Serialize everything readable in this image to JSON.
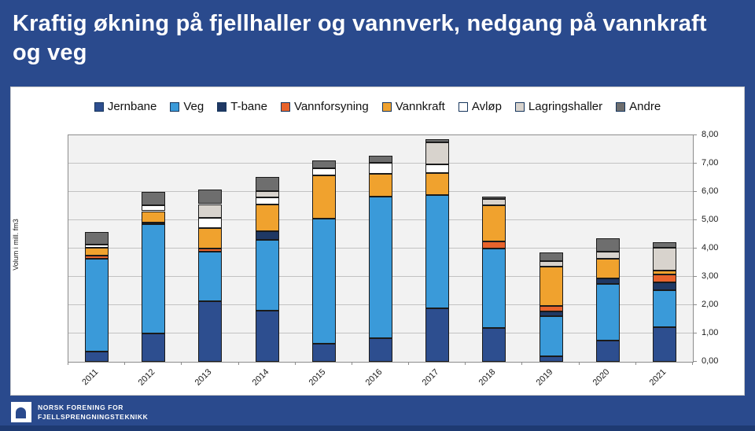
{
  "slide": {
    "title": "Kraftig økning på fjellhaller og vannverk, nedgang på vannkraft og veg",
    "background_color": "#2A4A8D",
    "title_color": "#FFFFFF"
  },
  "footer": {
    "org_line1": "NORSK FORENING FOR",
    "org_line2": "FJELLSPRENGNINGSTEKNIKK"
  },
  "chart_data": {
    "type": "bar",
    "stacked": true,
    "title": "",
    "xlabel": "",
    "ylabel": "Volum i mill. fm3",
    "ylim": [
      0,
      8
    ],
    "y_tick_labels": [
      "0,00",
      "1,00",
      "2,00",
      "3,00",
      "4,00",
      "5,00",
      "6,00",
      "7,00",
      "8,00"
    ],
    "y_axis_side": "right",
    "grid": true,
    "legend_position": "top",
    "plot_background": "#F2F2F2",
    "categories": [
      "2011",
      "2012",
      "2013",
      "2014",
      "2015",
      "2016",
      "2017",
      "2018",
      "2019",
      "2020",
      "2021"
    ],
    "series": [
      {
        "name": "Jernbane",
        "color": "#2D4E8F",
        "values": [
          0.35,
          1.0,
          2.15,
          1.8,
          0.63,
          0.83,
          1.88,
          1.19,
          0.19,
          0.76,
          1.22
        ]
      },
      {
        "name": "Veg",
        "color": "#3A9AD9",
        "values": [
          3.3,
          3.85,
          1.75,
          2.5,
          4.42,
          5.0,
          4.0,
          2.8,
          1.43,
          2.0,
          1.31
        ]
      },
      {
        "name": "T-bane",
        "color": "#1F3864",
        "values": [
          0,
          0,
          0,
          0.3,
          0,
          0,
          0,
          0,
          0.16,
          0.19,
          0.27
        ]
      },
      {
        "name": "Vannforsyning",
        "color": "#E8632C",
        "values": [
          0.1,
          0.07,
          0.1,
          0,
          0,
          0,
          0,
          0.26,
          0.19,
          0,
          0.28
        ]
      },
      {
        "name": "Vannkraft",
        "color": "#F0A22E",
        "values": [
          0.28,
          0.4,
          0.73,
          0.95,
          1.53,
          0.82,
          0.8,
          1.28,
          1.4,
          0.69,
          0.15
        ]
      },
      {
        "name": "Avløp",
        "color": "#FFFFFF",
        "values": [
          0.1,
          0.22,
          0.35,
          0.25,
          0.25,
          0.37,
          0.3,
          0,
          0,
          0,
          0
        ]
      },
      {
        "name": "Lagringshaller",
        "color": "#D8D3CD",
        "values": [
          0,
          0,
          0.49,
          0.22,
          0,
          0,
          0.78,
          0.22,
          0.19,
          0.24,
          0.79
        ]
      },
      {
        "name": "Andre",
        "color": "#6E6E6E",
        "values": [
          0.45,
          0.47,
          0.51,
          0.5,
          0.28,
          0.25,
          0.11,
          0.09,
          0.31,
          0.47,
          0.19
        ]
      }
    ]
  }
}
